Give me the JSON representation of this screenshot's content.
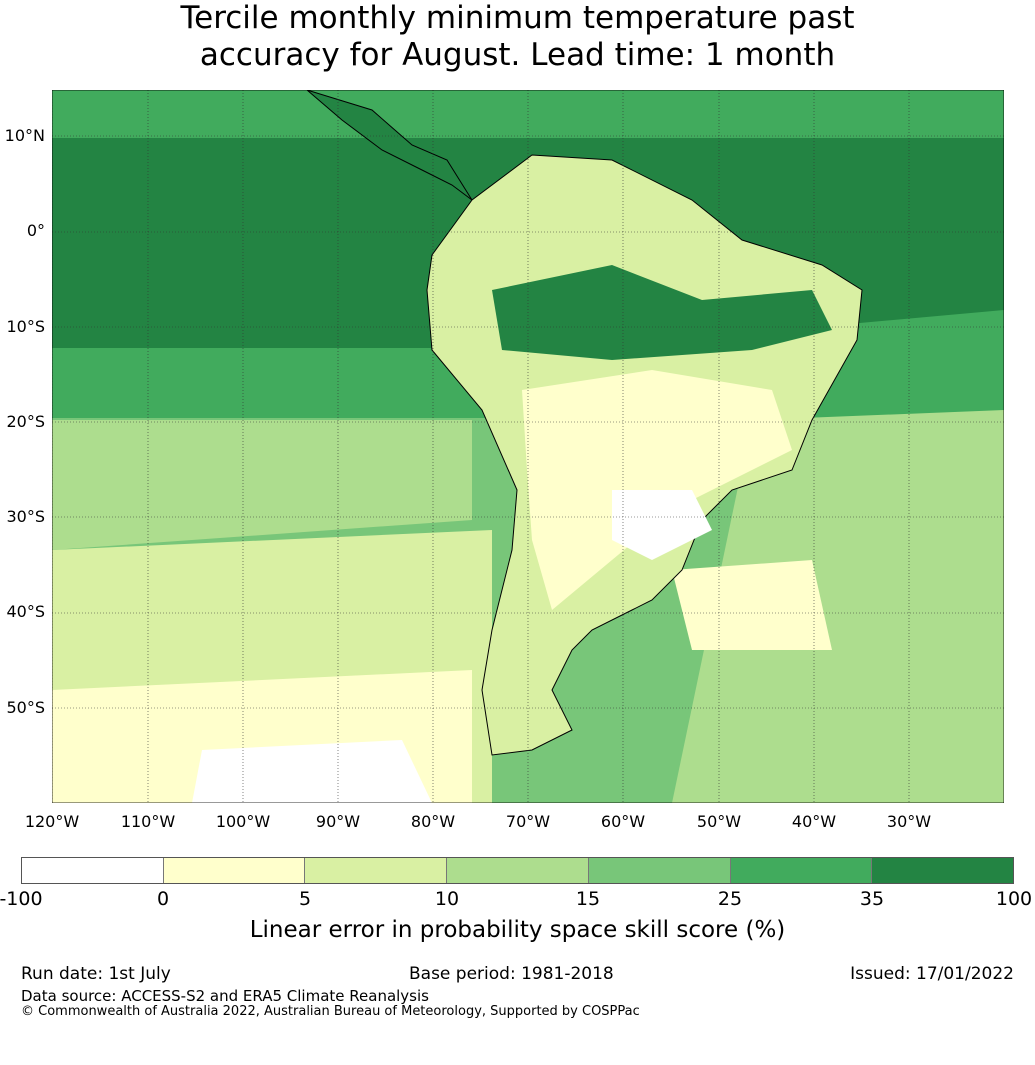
{
  "title": {
    "line1": "Tercile monthly minimum temperature past",
    "line2": "accuracy for August. Lead time: 1 month"
  },
  "map": {
    "lat_labels": [
      "10°N",
      "0°",
      "10°S",
      "20°S",
      "30°S",
      "40°S",
      "50°S"
    ],
    "lon_labels": [
      "120°W",
      "110°W",
      "100°W",
      "90°W",
      "80°W",
      "70°W",
      "60°W",
      "50°W",
      "40°W",
      "30°W"
    ]
  },
  "colorbar": {
    "tick_labels": [
      "-100",
      "0",
      "5",
      "10",
      "15",
      "25",
      "35",
      "100"
    ],
    "colors": [
      "#ffffff",
      "#ffffcc",
      "#d9f0a3",
      "#addd8e",
      "#78c679",
      "#41ab5d",
      "#238443"
    ],
    "label": "Linear error in probability space skill score (%)"
  },
  "footer": {
    "run_date": "Run date: 1st July",
    "base_period": "Base period: 1981-2018",
    "issued": "Issued: 17/01/2022",
    "data_source": "Data source: ACCESS-S2 and ERA5 Climate Reanalysis",
    "copyright": "© Commonwealth of Australia 2022, Australian Bureau of Meteorology, Supported by COSPPac"
  }
}
